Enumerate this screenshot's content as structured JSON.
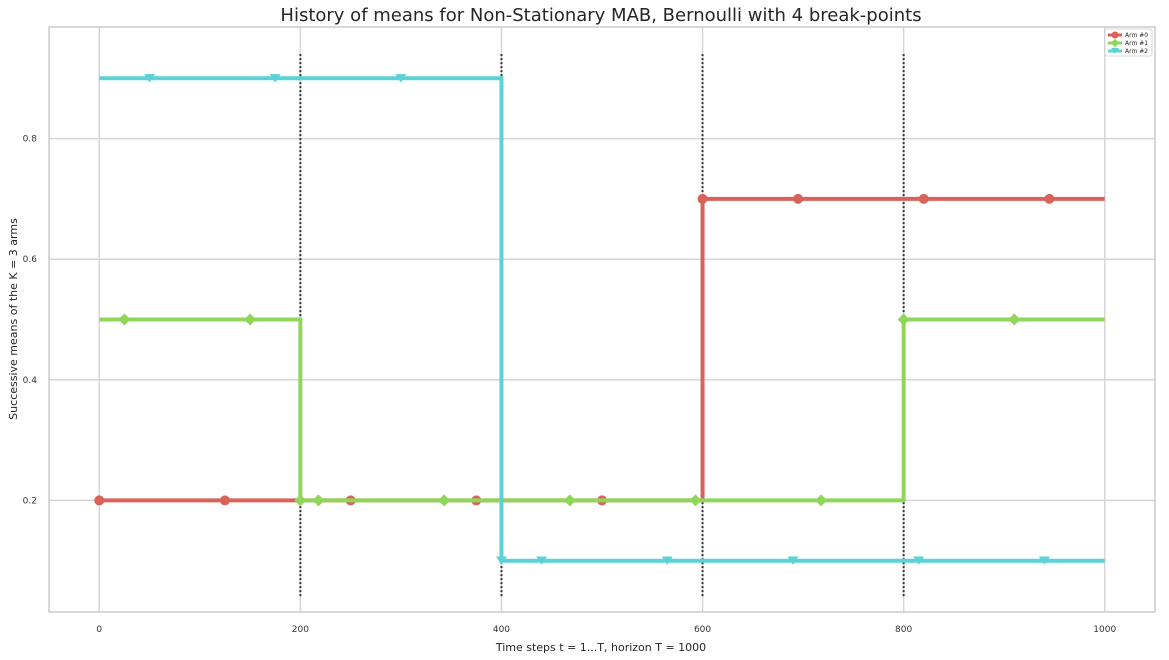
{
  "chart_data": {
    "type": "line",
    "title": "History of means for Non-Stationary MAB, Bernoulli with 4 break-points",
    "xlabel": "Time steps t = 1...T, horizon T = 1000",
    "ylabel": "Successive means of the K = 3 arms",
    "xlim": [
      -50,
      1050
    ],
    "ylim": [
      0.015,
      0.985
    ],
    "x_ticks": [
      0,
      200,
      400,
      600,
      800,
      1000
    ],
    "x_tick_labels": [
      "0",
      "200",
      "400",
      "600",
      "800",
      "1000"
    ],
    "y_ticks": [
      0.2,
      0.4,
      0.6,
      0.8
    ],
    "y_tick_labels": [
      "0.2",
      "0.4",
      "0.6",
      "0.8"
    ],
    "grid": true,
    "legend_position": "top-right",
    "break_points": [
      200,
      400,
      600,
      800
    ],
    "step_line": true,
    "series": [
      {
        "name": "Arm #0",
        "color": "#d9625a",
        "marker": "circle",
        "x": [
          0,
          200,
          400,
          600,
          800,
          1000
        ],
        "values": [
          0.2,
          0.2,
          0.2,
          0.7,
          0.7,
          0.7
        ],
        "marker_x": [
          0,
          125,
          250,
          375,
          500,
          600,
          695,
          820,
          945
        ]
      },
      {
        "name": "Arm #1",
        "color": "#8fd65b",
        "marker": "diamond",
        "x": [
          0,
          200,
          400,
          600,
          800,
          1000
        ],
        "values": [
          0.5,
          0.2,
          0.2,
          0.2,
          0.5,
          0.5
        ],
        "marker_x": [
          25,
          150,
          200,
          218,
          343,
          468,
          593,
          718,
          800,
          910
        ]
      },
      {
        "name": "Arm #2",
        "color": "#5bd2d5",
        "marker": "triangle-down",
        "x": [
          0,
          200,
          400,
          600,
          800,
          1000
        ],
        "values": [
          0.9,
          0.9,
          0.1,
          0.1,
          0.1,
          0.1
        ],
        "marker_x": [
          50,
          175,
          300,
          400,
          440,
          565,
          690,
          815,
          940
        ]
      }
    ]
  }
}
